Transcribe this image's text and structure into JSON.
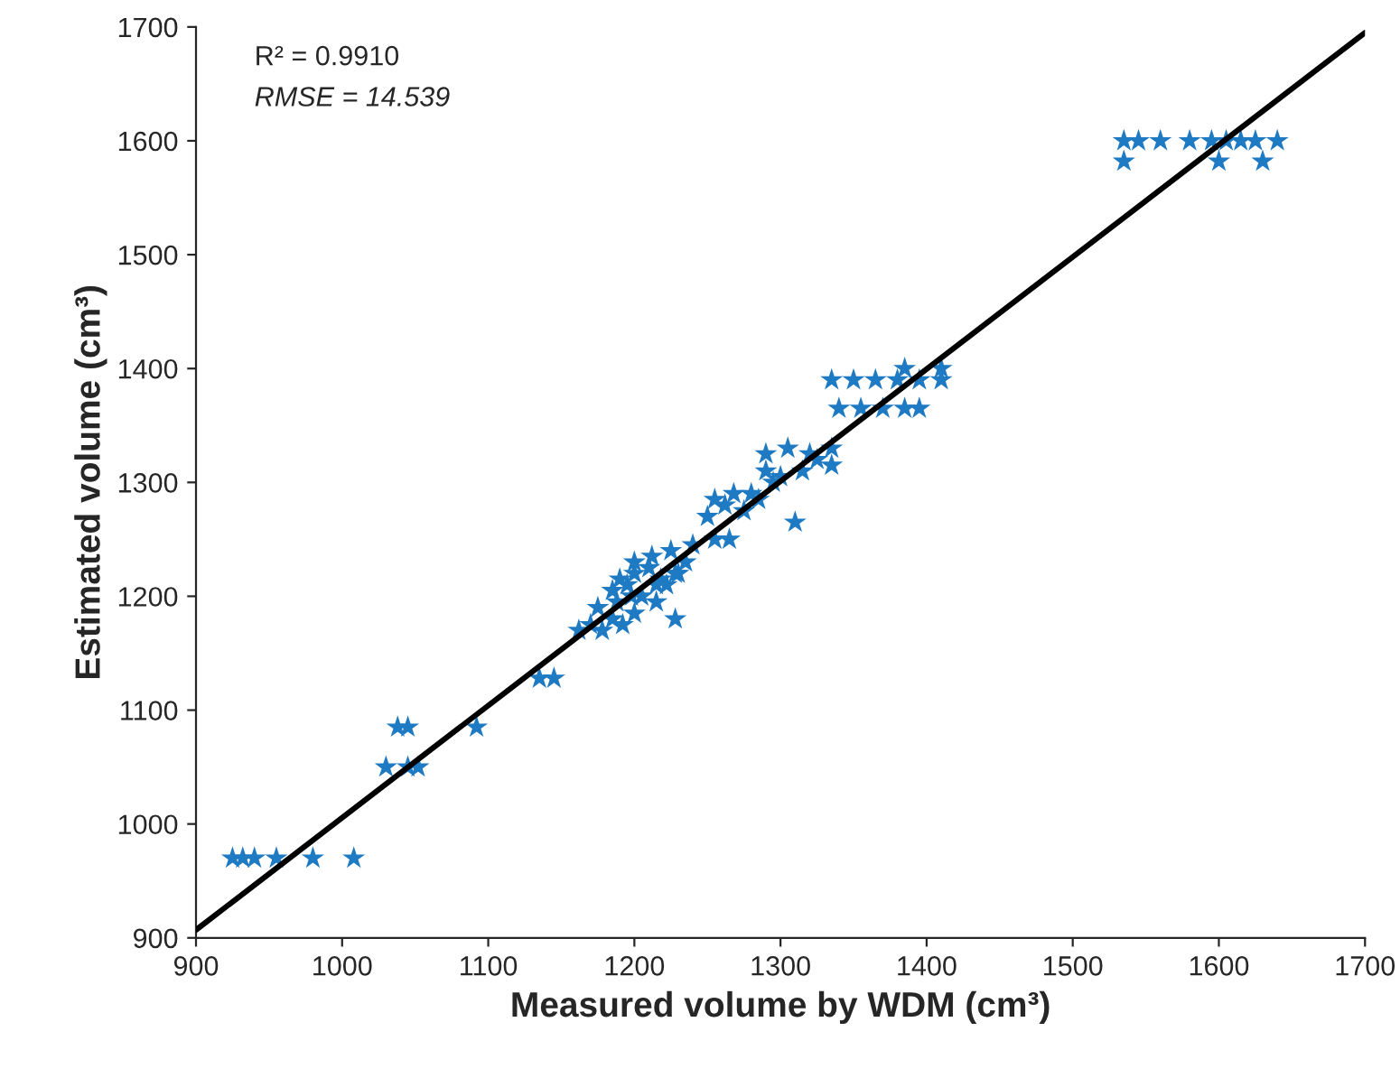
{
  "chart_data": {
    "type": "scatter",
    "xlabel": "Measured volume by WDM (cm³)",
    "ylabel": "Estimated volume (cm³)",
    "annotations": [
      "R² = 0.9910",
      "RMSE = 14.539"
    ],
    "xlim": [
      900,
      1700
    ],
    "ylim": [
      900,
      1700
    ],
    "xticks": [
      900,
      1000,
      1100,
      1200,
      1300,
      1400,
      1500,
      1600,
      1700
    ],
    "yticks": [
      900,
      1000,
      1100,
      1200,
      1300,
      1400,
      1500,
      1600,
      1700
    ],
    "grid": false,
    "marker": "star",
    "series": [
      {
        "color": "#1f7ac4",
        "x": [
          925,
          932,
          940,
          955,
          980,
          1008,
          1030,
          1045,
          1052,
          1038,
          1045,
          1092,
          1135,
          1145,
          1162,
          1170,
          1178,
          1185,
          1192,
          1200,
          1175,
          1188,
          1198,
          1228,
          1185,
          1195,
          1205,
          1215,
          1222,
          1190,
          1200,
          1210,
          1218,
          1230,
          1200,
          1212,
          1225,
          1235,
          1215,
          1228,
          1240,
          1255,
          1265,
          1250,
          1262,
          1275,
          1285,
          1310,
          1255,
          1268,
          1280,
          1295,
          1290,
          1300,
          1315,
          1325,
          1335,
          1290,
          1305,
          1320,
          1335,
          1340,
          1355,
          1370,
          1385,
          1395,
          1335,
          1350,
          1365,
          1380,
          1395,
          1410,
          1385,
          1410,
          1535,
          1545,
          1560,
          1580,
          1595,
          1605,
          1615,
          1625,
          1640,
          1535,
          1600,
          1630
        ],
        "values": [
          970,
          970,
          970,
          970,
          970,
          970,
          1050,
          1050,
          1050,
          1085,
          1085,
          1085,
          1128,
          1128,
          1170,
          1175,
          1170,
          1180,
          1175,
          1185,
          1190,
          1195,
          1200,
          1180,
          1205,
          1210,
          1200,
          1195,
          1210,
          1215,
          1220,
          1225,
          1215,
          1220,
          1230,
          1235,
          1240,
          1230,
          1210,
          1220,
          1245,
          1250,
          1250,
          1270,
          1280,
          1275,
          1285,
          1265,
          1285,
          1290,
          1290,
          1300,
          1310,
          1305,
          1310,
          1320,
          1315,
          1325,
          1330,
          1325,
          1330,
          1365,
          1365,
          1365,
          1365,
          1365,
          1390,
          1390,
          1390,
          1390,
          1390,
          1390,
          1400,
          1400,
          1600,
          1600,
          1600,
          1600,
          1600,
          1600,
          1600,
          1600,
          1600,
          1582,
          1582,
          1582
        ]
      },
      {
        "type": "line",
        "color": "#000000",
        "marker": "none",
        "x": [
          900,
          1700
        ],
        "values": [
          907,
          1695
        ]
      }
    ]
  }
}
